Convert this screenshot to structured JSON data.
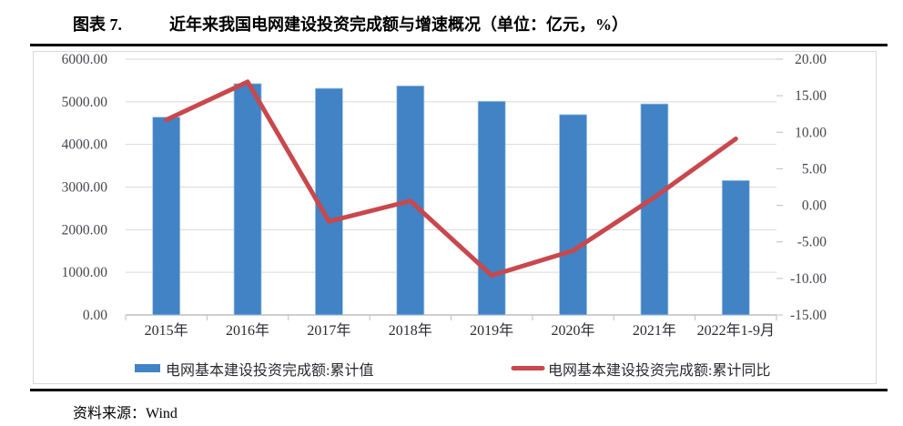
{
  "header": {
    "figure_label": "图表 7.",
    "title": "近年来我国电网建设投资完成额与增速概况（单位：亿元，%）"
  },
  "footer": {
    "source": "资料来源：Wind"
  },
  "chart_data": {
    "type": "bar",
    "subtype": "bar-line-combo",
    "categories": [
      "2015年",
      "2016年",
      "2017年",
      "2018年",
      "2019年",
      "2020年",
      "2021年",
      "2022年1-9月"
    ],
    "series": [
      {
        "name": "电网基本建设投资完成额:累计值",
        "type": "bar",
        "axis": "left",
        "color": "#4183C4",
        "edge_color": "#A7C6E8",
        "values": [
          4640,
          5426,
          5315,
          5373,
          5012,
          4699,
          4951,
          3154
        ]
      },
      {
        "name": "电网基本建设投资完成额:累计同比",
        "type": "line",
        "axis": "right",
        "color": "#C8484D",
        "values": [
          11.7,
          16.9,
          -2.2,
          0.6,
          -9.6,
          -6.2,
          1.1,
          9.1
        ]
      }
    ],
    "left_axis": {
      "min": 0,
      "max": 6000,
      "step": 1000,
      "unit": "亿元",
      "decimals": 2
    },
    "right_axis": {
      "min": -15,
      "max": 20,
      "step": 5,
      "unit": "%",
      "decimals": 2
    },
    "grid": true,
    "legend_position": "bottom",
    "palette": {
      "grid": "#D9D9D9",
      "axis": "#BFBFBF",
      "frame": "#D9D9D9",
      "tick_text": "#46464F",
      "label_text": "#2B2B33"
    }
  }
}
